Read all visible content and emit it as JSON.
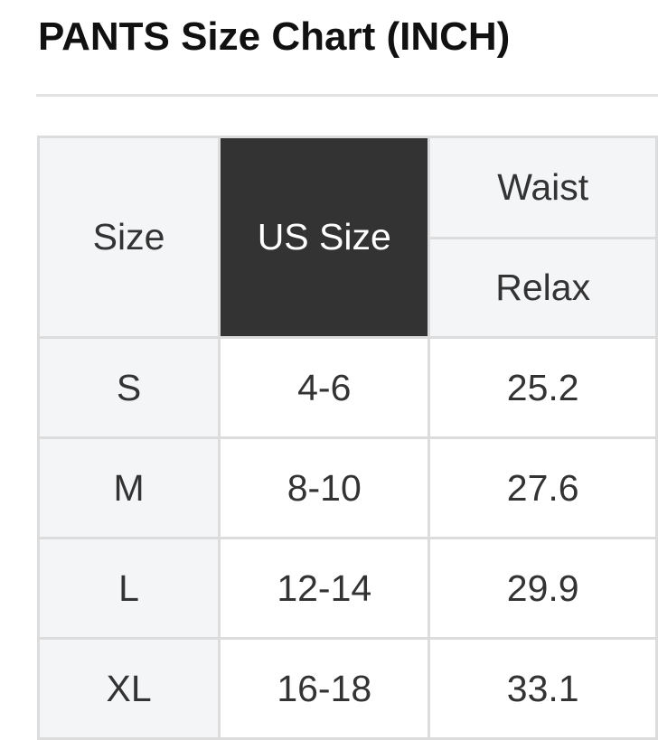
{
  "title": "PANTS Size Chart (INCH)",
  "table": {
    "headers": {
      "size": "Size",
      "us_size": "US Size",
      "waist": "Waist",
      "waist_sub": "Relax"
    },
    "rows": [
      {
        "size": "S",
        "us_size": "4-6",
        "waist_relax": "25.2"
      },
      {
        "size": "M",
        "us_size": "8-10",
        "waist_relax": "27.6"
      },
      {
        "size": "L",
        "us_size": "12-14",
        "waist_relax": "29.9"
      },
      {
        "size": "XL",
        "us_size": "16-18",
        "waist_relax": "33.1"
      }
    ]
  },
  "colors": {
    "header_bg": "#f4f5f7",
    "highlight_header_bg": "#333333",
    "border": "#dcdcdc"
  }
}
